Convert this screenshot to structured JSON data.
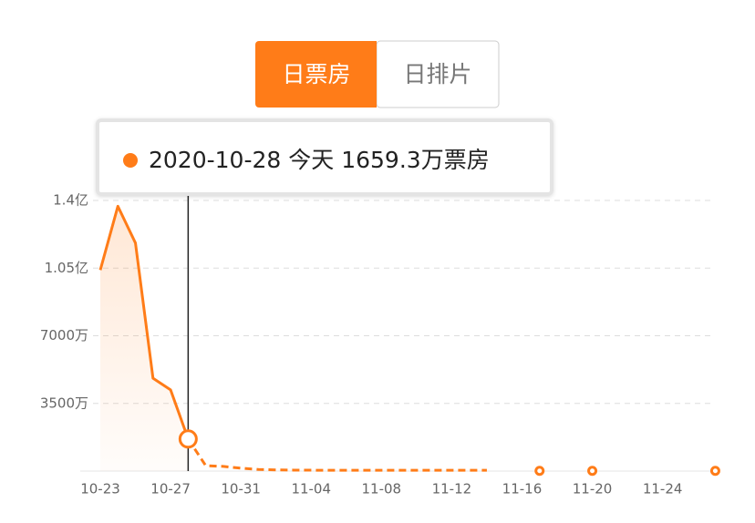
{
  "tabs": {
    "active": "日票房",
    "inactive": "日排片"
  },
  "chart_data": {
    "type": "line",
    "tooltip": {
      "date": "2020-10-28",
      "day": "今天",
      "text": "1659.3万票房"
    },
    "color": "#ff7c18",
    "categories": [
      "10-23",
      null,
      null,
      null,
      "10-27",
      null,
      null,
      null,
      "10-31",
      null,
      null,
      null,
      "11-04",
      null,
      null,
      null,
      "11-08",
      null,
      null,
      null,
      "11-12",
      null,
      null,
      null,
      "11-16",
      null,
      null,
      null,
      "11-20",
      null,
      null,
      null,
      "11-24",
      null,
      null,
      null
    ],
    "series": [
      {
        "color": "#ff7c18",
        "style": "solid",
        "values": [
          10400,
          13700,
          11800,
          4800,
          4200,
          1659.3,
          null,
          null,
          null,
          null,
          null,
          null,
          null,
          null,
          null,
          null,
          null,
          null,
          null,
          null,
          null,
          null,
          null,
          null,
          null,
          null,
          null,
          null,
          null,
          null,
          null,
          null,
          null,
          null,
          null,
          null
        ]
      },
      {
        "color": "#ff7c18",
        "style": "dashed",
        "values": [
          null,
          null,
          null,
          null,
          null,
          null,
          280,
          240,
          150,
          80,
          60,
          50,
          45,
          40,
          40,
          40,
          40,
          40,
          40,
          40,
          40,
          40,
          40,
          null,
          null,
          10,
          null,
          null,
          10,
          null,
          null,
          null,
          null,
          null,
          null,
          10
        ]
      }
    ],
    "selected": 5,
    "ylim": [
      0,
      14000
    ],
    "yticks": [
      {
        "value": 3500,
        "label": "3500万"
      },
      {
        "value": 7000,
        "label": "7000万"
      },
      {
        "value": 10500,
        "label": "1.05亿"
      },
      {
        "value": 14000,
        "label": "1.4亿"
      }
    ],
    "grid": true
  }
}
